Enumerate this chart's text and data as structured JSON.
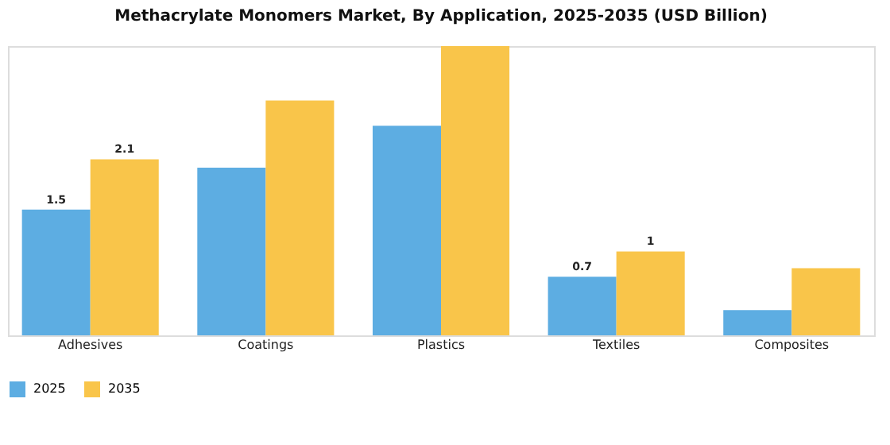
{
  "chart_data": {
    "type": "bar",
    "title": "Methacrylate Monomers Market, By Application, 2025-2035 (USD Billion)",
    "categories": [
      "Adhesives",
      "Coatings",
      "Plastics",
      "Textiles",
      "Composites"
    ],
    "series": [
      {
        "name": "2025",
        "color": "#5dade2",
        "values": [
          1.5,
          2.0,
          2.5,
          0.7,
          0.3
        ],
        "value_labels": [
          "1.5",
          null,
          null,
          "0.7",
          null
        ]
      },
      {
        "name": "2035",
        "color": "#f9c54a",
        "values": [
          2.1,
          2.8,
          3.45,
          1,
          0.8
        ],
        "value_labels": [
          "2.1",
          null,
          null,
          "1",
          null
        ]
      }
    ],
    "grid": false,
    "legend": "bottom"
  }
}
